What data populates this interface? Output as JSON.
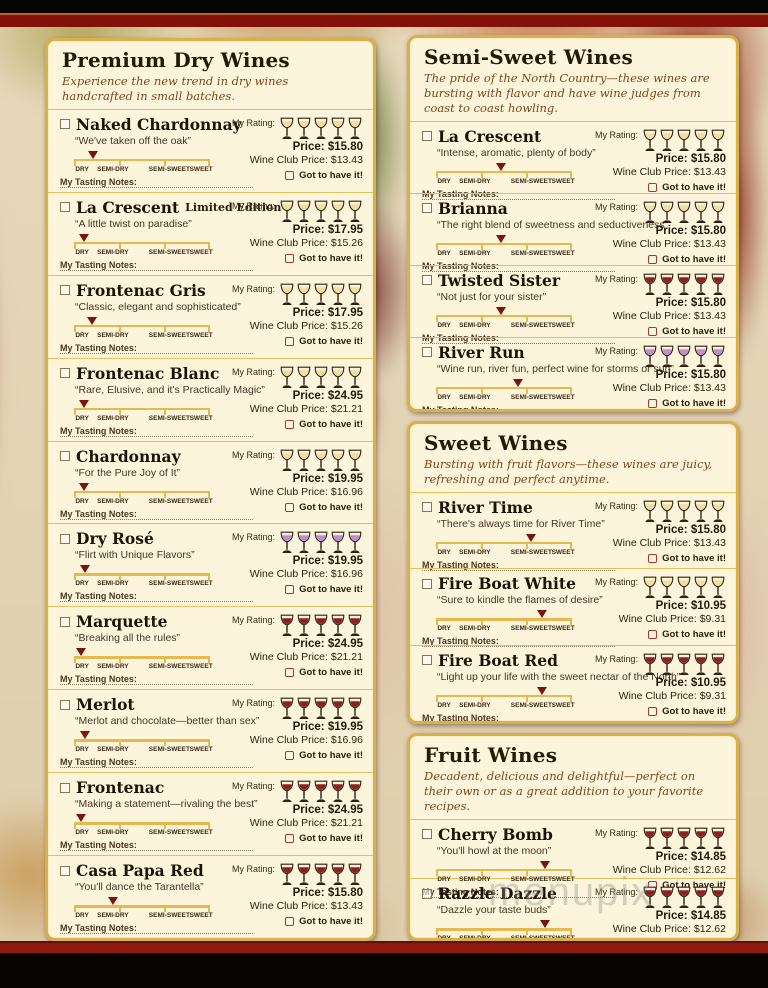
{
  "page": {
    "watermark": "menupix"
  },
  "labels": {
    "my_rating": "My Rating:",
    "my_tasting_notes": "My Tasting Notes:",
    "got_to_have_it": "Got to have it!",
    "price_prefix": "Price:",
    "club_prefix": "Wine Club Price:",
    "scale": [
      "DRY",
      "SEMI-DRY",
      "SEMI-SWEET",
      "SWEET"
    ]
  },
  "glass_colors": {
    "white": "#efe0a0",
    "rose": "#c48cd0",
    "red": "#8e2020"
  },
  "sections": [
    {
      "id": "premium-dry",
      "column": "left",
      "title": "Premium Dry Wines",
      "subtitle": "Experience the new trend in dry wines handcrafted in small batches.",
      "wines": [
        {
          "name": "Naked Chardonnay",
          "quote": "“We've taken off the oak”",
          "price": "$15.80",
          "club_price": "$13.43",
          "glass": "white",
          "marker": 14
        },
        {
          "name": "La Crescent",
          "suffix": "Limited Edition",
          "quote": "“A little twist on paradise”",
          "price": "$17.95",
          "club_price": "$15.26",
          "glass": "white",
          "marker": 7
        },
        {
          "name": "Frontenac Gris",
          "quote": "“Classic, elegant and sophisticated”",
          "price": "$17.95",
          "club_price": "$15.26",
          "glass": "white",
          "marker": 13
        },
        {
          "name": "Frontenac Blanc",
          "quote": "“Rare, Elusive, and it's Practically Magic”",
          "price": "$24.95",
          "club_price": "$21.21",
          "glass": "white",
          "marker": 7
        },
        {
          "name": "Chardonnay",
          "quote": "“For the Pure Joy of It”",
          "price": "$19.95",
          "club_price": "$16.96",
          "glass": "white",
          "marker": 7
        },
        {
          "name": "Dry Rosé",
          "quote": "“Flirt with Unique Flavors”",
          "price": "$19.95",
          "club_price": "$16.96",
          "glass": "rose",
          "marker": 8
        },
        {
          "name": "Marquette",
          "quote": "“Breaking all the rules”",
          "price": "$24.95",
          "club_price": "$21.21",
          "glass": "red",
          "marker": 5
        },
        {
          "name": "Merlot",
          "quote": "“Merlot and chocolate—better than sex”",
          "price": "$19.95",
          "club_price": "$16.96",
          "glass": "red",
          "marker": 8
        },
        {
          "name": "Frontenac",
          "quote": "“Making a statement—rivaling the best”",
          "price": "$24.95",
          "club_price": "$21.21",
          "glass": "red",
          "marker": 5
        },
        {
          "name": "Casa Papa Red",
          "quote": "“You'll dance the Tarantella”",
          "price": "$15.80",
          "club_price": "$13.43",
          "glass": "red",
          "marker": 29
        }
      ]
    },
    {
      "id": "semi-sweet",
      "column": "right",
      "title": "Semi-Sweet Wines",
      "subtitle": "The pride of the North Country—these wines are bursting with flavor and have wine judges from coast to coast howling.",
      "wines": [
        {
          "name": "La Crescent",
          "quote": "“Intense, aromatic, plenty of body”",
          "price": "$15.80",
          "club_price": "$13.43",
          "glass": "white",
          "marker": 48
        },
        {
          "name": "Brianna",
          "quote": "“The right blend of sweetness and seductiveness”",
          "price": "$15.80",
          "club_price": "$13.43",
          "glass": "white",
          "marker": 48
        },
        {
          "name": "Twisted Sister",
          "quote": "“Not just for your sister”",
          "price": "$15.80",
          "club_price": "$13.43",
          "glass": "red",
          "marker": 48
        },
        {
          "name": "River Run",
          "quote": "“Wine run, river fun, perfect wine for storms or sun”",
          "price": "$15.80",
          "club_price": "$13.43",
          "glass": "rose",
          "marker": 60
        }
      ]
    },
    {
      "id": "sweet",
      "column": "right",
      "title": "Sweet Wines",
      "subtitle": "Bursting with fruit flavors—these wines are juicy, refreshing and perfect anytime.",
      "wines": [
        {
          "name": "River Time",
          "quote": "“There's always time for River Time”",
          "price": "$15.80",
          "club_price": "$13.43",
          "glass": "white",
          "marker": 70
        },
        {
          "name": "Fire Boat White",
          "quote": "“Sure to kindle the flames of desire”",
          "price": "$10.95",
          "club_price": "$9.31",
          "glass": "white",
          "marker": 78
        },
        {
          "name": "Fire Boat Red",
          "quote": "“Light up your life with the sweet nectar of the North”",
          "price": "$10.95",
          "club_price": "$9.31",
          "glass": "red",
          "marker": 78
        }
      ]
    },
    {
      "id": "fruit",
      "column": "right",
      "title": "Fruit Wines",
      "subtitle": "Decadent, delicious and delightful—perfect on their own or as a great addition to your favorite recipes.",
      "wines": [
        {
          "name": "Cherry Bomb",
          "quote": "“You'll howl at the moon”",
          "price": "$14.85",
          "club_price": "$12.62",
          "glass": "red",
          "marker": 80
        },
        {
          "name": "Razzle Dazzle",
          "quote": "“Dazzle your taste buds”",
          "price": "$14.85",
          "club_price": "$12.62",
          "glass": "red",
          "marker": 80
        }
      ]
    }
  ]
}
